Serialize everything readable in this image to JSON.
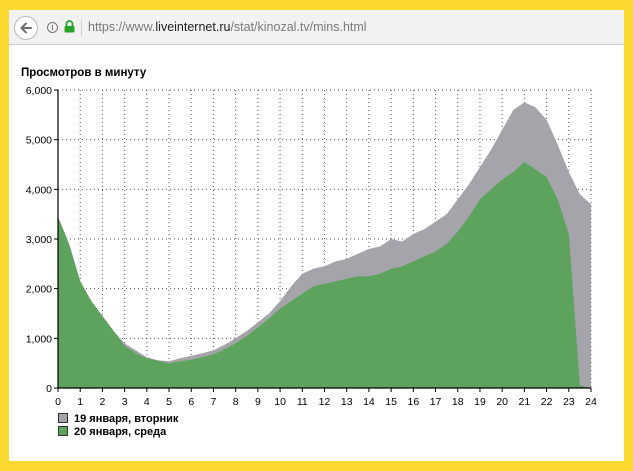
{
  "browser": {
    "url_prefix": "https://www.",
    "url_host": "liveinternet.ru",
    "url_path": "/stat/kinozal.tv/mins.html"
  },
  "chart_data": {
    "type": "area",
    "title": "Просмотров в минуту",
    "xlabel": "",
    "ylabel": "",
    "xlim": [
      0,
      24
    ],
    "ylim": [
      0,
      6000
    ],
    "x_ticks": [
      "0",
      "1",
      "2",
      "3",
      "4",
      "5",
      "6",
      "7",
      "8",
      "9",
      "10",
      "11",
      "12",
      "13",
      "14",
      "15",
      "16",
      "17",
      "18",
      "19",
      "20",
      "21",
      "22",
      "23",
      "24"
    ],
    "y_ticks": [
      "0",
      "1,000",
      "2,000",
      "3,000",
      "4,000",
      "5,000",
      "6,000"
    ],
    "grid": true,
    "legend_position": "bottom-left",
    "x_hours": [
      0,
      0.5,
      1,
      1.5,
      2,
      2.5,
      3,
      3.5,
      4,
      4.5,
      5,
      5.5,
      6,
      6.5,
      7,
      7.5,
      8,
      8.5,
      9,
      9.5,
      10,
      10.5,
      11,
      11.5,
      12,
      12.5,
      13,
      13.5,
      14,
      14.5,
      15,
      15.5,
      16,
      16.5,
      17,
      17.5,
      18,
      18.5,
      19,
      19.5,
      20,
      20.5,
      21,
      21.5,
      22,
      22.5,
      23,
      23.5,
      24
    ],
    "series": [
      {
        "name": "19 января, вторник",
        "color": "#a6a4ab",
        "values": [
          3450,
          2900,
          2150,
          1750,
          1450,
          1150,
          900,
          760,
          620,
          560,
          540,
          600,
          650,
          700,
          760,
          870,
          1000,
          1150,
          1320,
          1500,
          1750,
          2050,
          2300,
          2400,
          2450,
          2550,
          2600,
          2700,
          2800,
          2850,
          3000,
          2950,
          3100,
          3200,
          3350,
          3500,
          3800,
          4100,
          4450,
          4800,
          5200,
          5600,
          5750,
          5650,
          5400,
          4900,
          4350,
          3900,
          3700
        ]
      },
      {
        "name": "20 января, среда",
        "color": "#5ea35d",
        "values": [
          3450,
          2900,
          2150,
          1750,
          1450,
          1150,
          850,
          700,
          600,
          550,
          500,
          540,
          570,
          620,
          680,
          780,
          900,
          1050,
          1220,
          1400,
          1600,
          1750,
          1900,
          2050,
          2100,
          2150,
          2200,
          2250,
          2250,
          2300,
          2400,
          2450,
          2550,
          2650,
          2750,
          2900,
          3150,
          3450,
          3800,
          4000,
          4200,
          4350,
          4550,
          4400,
          4250,
          3800,
          3100,
          50,
          0
        ]
      }
    ]
  }
}
